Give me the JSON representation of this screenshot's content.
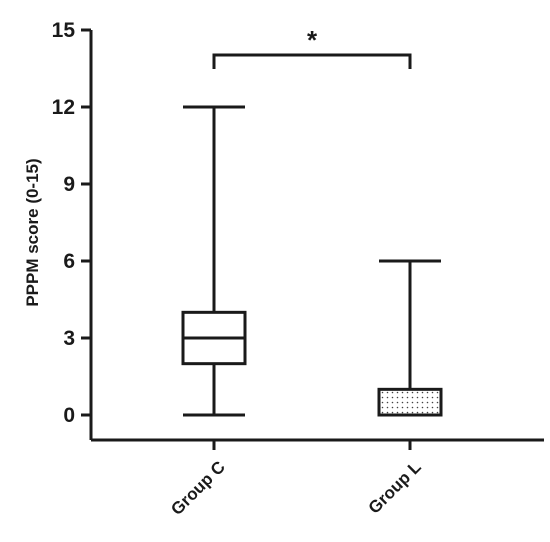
{
  "chart_data": {
    "type": "box",
    "ylabel": "PPPM score (0-15)",
    "xlabel": "",
    "ylim": [
      0,
      15
    ],
    "yticks": [
      0,
      3,
      6,
      9,
      12,
      15
    ],
    "categories": [
      "Group C",
      "Group L"
    ],
    "boxes": [
      {
        "category": "Group C",
        "min": 0,
        "q1": 2,
        "median": 3,
        "q3": 4,
        "max": 12,
        "fill": "none"
      },
      {
        "category": "Group L",
        "min": 0,
        "q1": 0,
        "median": 0,
        "q3": 1,
        "max": 6,
        "fill": "dotted"
      }
    ],
    "significance": {
      "between": [
        "Group C",
        "Group L"
      ],
      "label": "*"
    },
    "grid": false
  },
  "colors": {
    "ink": "#1a1a1a",
    "background": "#ffffff"
  }
}
